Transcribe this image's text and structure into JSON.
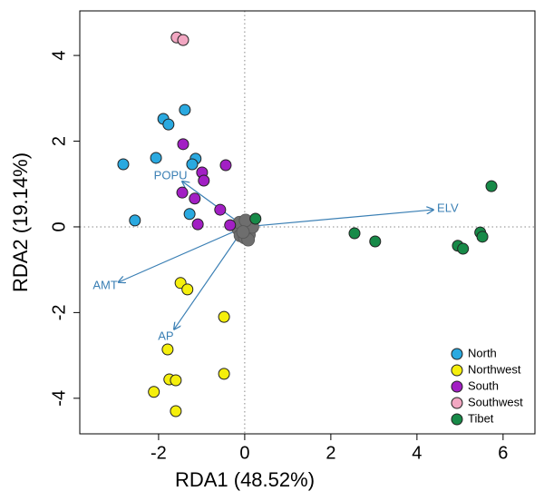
{
  "chart_data": {
    "type": "scatter",
    "xlabel": "RDA1 (48.52%)",
    "ylabel": "RDA2 (19.14%)",
    "xlim": [
      -3.83,
      6.74
    ],
    "ylim": [
      -4.83,
      5.04
    ],
    "xticks": [
      -2,
      0,
      2,
      4,
      6
    ],
    "yticks": [
      -4,
      -2,
      0,
      2,
      4
    ],
    "legend": "bottom-right",
    "series": [
      {
        "name": "North",
        "color": "#2aa9e0",
        "x": [
          -2.82,
          -1.89,
          -1.77,
          -1.39,
          -2.06,
          -1.14,
          -1.22,
          -1.28,
          -2.55
        ],
        "values": [
          1.46,
          2.52,
          2.39,
          2.73,
          1.61,
          1.59,
          1.46,
          0.3,
          0.15
        ]
      },
      {
        "name": "Northwest",
        "color": "#f5ef0c",
        "x": [
          -1.49,
          -1.33,
          -0.48,
          -1.79,
          -1.75,
          -1.6,
          -0.48,
          -2.11,
          -1.6
        ],
        "values": [
          -1.31,
          -1.46,
          -2.1,
          -2.86,
          -3.56,
          -3.58,
          -3.43,
          -3.85,
          -4.3
        ]
      },
      {
        "name": "South",
        "color": "#a21fc4",
        "x": [
          -1.43,
          -0.99,
          -0.95,
          -0.44,
          -1.45,
          -1.16,
          -0.57,
          -1.09,
          -0.34
        ],
        "values": [
          1.93,
          1.27,
          1.08,
          1.44,
          0.8,
          0.66,
          0.4,
          0.06,
          0.04
        ]
      },
      {
        "name": "Southwest",
        "color": "#f2a7c2",
        "x": [
          -1.58,
          -1.43
        ],
        "values": [
          4.42,
          4.36
        ]
      },
      {
        "name": "Tibet",
        "color": "#178a48",
        "x": [
          0.25,
          2.55,
          3.03,
          4.95,
          5.07,
          5.47,
          5.52,
          5.73
        ],
        "values": [
          0.19,
          -0.15,
          -0.34,
          -0.44,
          -0.51,
          -0.13,
          -0.23,
          0.95
        ]
      }
    ],
    "center_points": {
      "color": "#6e6e6e",
      "x": [
        -0.15,
        -0.05,
        0.05,
        0.12,
        -0.1,
        0.0,
        0.1,
        0.18,
        -0.12,
        0.02,
        0.08,
        -0.04
      ],
      "values": [
        -0.05,
        0.08,
        -0.1,
        0.05,
        -0.2,
        -0.25,
        -0.18,
        0.0,
        0.1,
        0.15,
        -0.3,
        -0.12
      ]
    },
    "arrow_color": "#3a7fb4",
    "arrows": [
      {
        "label": "POPU",
        "x": -1.45,
        "y": 1.06
      },
      {
        "label": "ELV",
        "x": 4.38,
        "y": 0.4
      },
      {
        "label": "AMT",
        "x": -2.93,
        "y": -1.29
      },
      {
        "label": "AP",
        "x": -1.64,
        "y": -2.39
      }
    ]
  }
}
